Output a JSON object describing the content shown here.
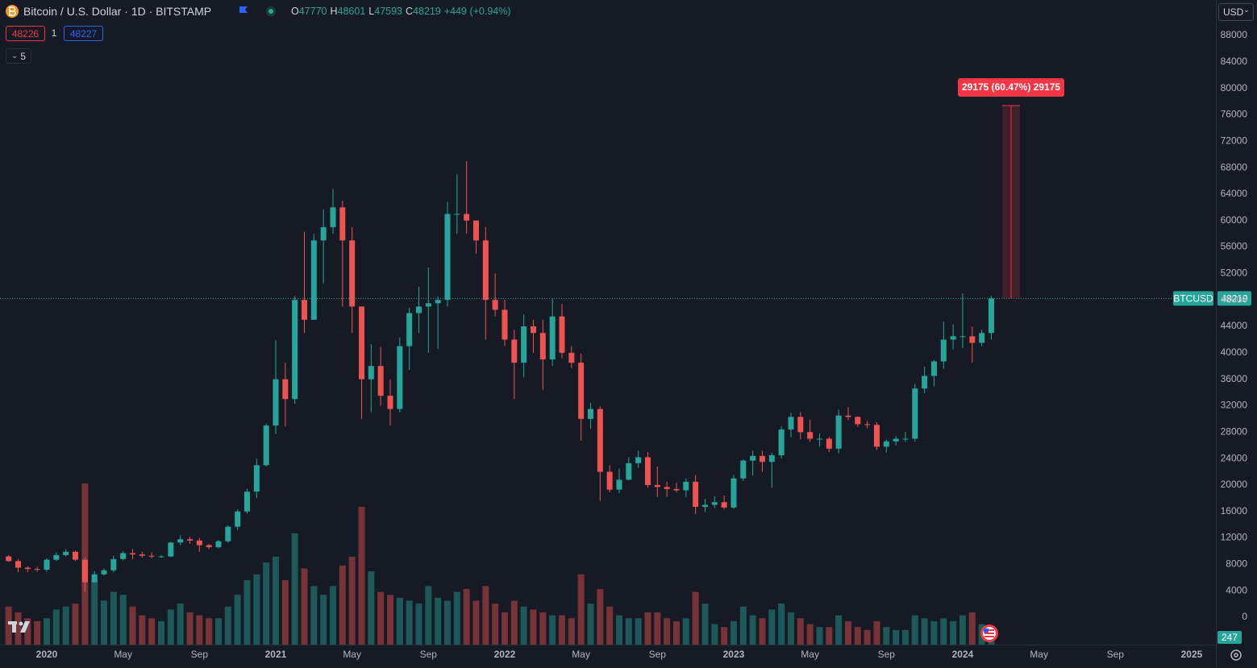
{
  "chart_data": {
    "type": "candlestick",
    "title": "Bitcoin / U.S. Dollar · 1D · BITSTAMP",
    "legend_values": [
      {
        "label": "O",
        "value": 47770
      },
      {
        "label": "H",
        "value": 48601
      },
      {
        "label": "L",
        "value": 47593
      },
      {
        "label": "C",
        "value": 48219
      }
    ],
    "change_label": "+449 (+0.94%)",
    "sell_price": 48226,
    "spread": 1,
    "buy_price": 48227,
    "indicators_count": 5,
    "currency": "USD",
    "symbol": "BTCUSD",
    "up_color": "#26a69a",
    "down_color": "#ef5350",
    "grid": false,
    "categories": [
      null,
      null,
      null,
      null,
      "2020",
      null,
      null,
      null,
      null,
      null,
      null,
      null,
      "May",
      null,
      null,
      null,
      null,
      null,
      null,
      null,
      "Sep",
      null,
      null,
      null,
      null,
      null,
      null,
      null,
      "2021",
      null,
      null,
      null,
      null,
      null,
      null,
      null,
      "May",
      null,
      null,
      null,
      null,
      null,
      null,
      null,
      "Sep",
      null,
      null,
      null,
      null,
      null,
      null,
      null,
      "2022",
      null,
      null,
      null,
      null,
      null,
      null,
      null,
      "May",
      null,
      null,
      null,
      null,
      null,
      null,
      null,
      "Sep",
      null,
      null,
      null,
      null,
      null,
      null,
      null,
      "2023",
      null,
      null,
      null,
      null,
      null,
      null,
      null,
      "May",
      null,
      null,
      null,
      null,
      null,
      null,
      null,
      "Sep",
      null,
      null,
      null,
      null,
      null,
      null,
      null,
      "2024",
      null,
      null,
      null,
      null,
      null,
      null,
      null,
      "May",
      null,
      null,
      null,
      null,
      null,
      null,
      null,
      "Sep",
      null,
      null,
      null,
      null,
      null,
      null,
      null,
      "2025",
      null
    ],
    "open": [
      9200,
      8500,
      7500,
      7300,
      7200,
      8700,
      9400,
      9900,
      8700,
      5300,
      6500,
      7100,
      8800,
      9700,
      9500,
      9300,
      9200,
      9200,
      11300,
      11800,
      11600,
      10900,
      10600,
      11500,
      13700,
      16000,
      19000,
      23000,
      29000,
      36000,
      33000,
      48000,
      45000,
      57000,
      59000,
      62000,
      57000,
      47000,
      36000,
      38000,
      33500,
      31500,
      41000,
      46000,
      47000,
      47500,
      48000,
      61000,
      61000,
      60000,
      57000,
      48000,
      46500,
      42000,
      38500,
      44000,
      43000,
      39000,
      45500,
      40000,
      38500,
      30000,
      31500,
      22000,
      19300,
      20800,
      23300,
      24200,
      20000,
      19700,
      19400,
      19200,
      20500,
      16700,
      17000,
      17400,
      16600,
      21000,
      23700,
      24400,
      23500,
      24500,
      28400,
      30300,
      28000,
      27000,
      27000,
      25500,
      30500,
      30300,
      29200,
      29100,
      25800,
      26600,
      27000,
      27000,
      34600,
      36500,
      38700,
      42000,
      42500,
      42500,
      41500,
      43000,
      null,
      null,
      null,
      null,
      null,
      null,
      null,
      null,
      null,
      null,
      null,
      null,
      null,
      null,
      null,
      null,
      null,
      null,
      null,
      null,
      null,
      null
    ],
    "high": [
      9400,
      8800,
      7700,
      7600,
      8900,
      9800,
      10300,
      10100,
      9000,
      7000,
      7400,
      9300,
      10000,
      10300,
      9900,
      9800,
      9400,
      11400,
      12400,
      12100,
      12000,
      11100,
      11700,
      13900,
      16300,
      19400,
      24000,
      29300,
      41900,
      38500,
      48600,
      58300,
      58000,
      61700,
      64800,
      63000,
      59000,
      47000,
      41300,
      40900,
      36000,
      42300,
      46800,
      50000,
      52900,
      48500,
      62800,
      67000,
      69000,
      60000,
      59000,
      52000,
      48000,
      43500,
      45800,
      45000,
      45000,
      48200,
      47400,
      41000,
      39900,
      32400,
      31900,
      23000,
      22500,
      24200,
      25200,
      25000,
      22800,
      20500,
      20400,
      21000,
      21500,
      17900,
      18300,
      18400,
      21500,
      23900,
      25200,
      25200,
      24900,
      28900,
      30900,
      31000,
      29900,
      27800,
      27300,
      31400,
      31800,
      30400,
      29700,
      29500,
      26900,
      27400,
      28000,
      35300,
      37900,
      38900,
      44700,
      44300,
      49000,
      44000,
      43500,
      48600,
      null,
      null,
      null,
      null,
      null,
      null,
      null,
      null,
      null,
      null,
      null,
      null,
      null,
      null,
      null,
      null,
      null,
      null,
      null,
      null,
      null,
      null
    ],
    "low": [
      8400,
      6800,
      6800,
      6900,
      6900,
      8500,
      9200,
      8500,
      3850,
      5200,
      6300,
      6800,
      8600,
      8800,
      9000,
      8900,
      9000,
      9100,
      10900,
      11100,
      9900,
      10300,
      10400,
      11300,
      13200,
      15700,
      18000,
      22800,
      27700,
      28900,
      32300,
      43000,
      45000,
      50500,
      58000,
      47000,
      43000,
      30000,
      31000,
      32000,
      29000,
      31000,
      37400,
      43000,
      40000,
      40600,
      47000,
      58000,
      58000,
      55000,
      42000,
      45500,
      41000,
      33000,
      36300,
      40000,
      34400,
      38000,
      39200,
      37700,
      26700,
      28500,
      17600,
      18900,
      18800,
      20700,
      22600,
      19600,
      18200,
      18200,
      18900,
      18200,
      15600,
      15900,
      16500,
      16300,
      16400,
      20600,
      21400,
      22000,
      19600,
      24000,
      27200,
      26900,
      26500,
      25800,
      25000,
      24800,
      29800,
      28800,
      28600,
      25300,
      24900,
      26000,
      26500,
      26600,
      33900,
      34900,
      37600,
      40500,
      40700,
      38500,
      41000,
      42000,
      null,
      null,
      null,
      null,
      null,
      null,
      null,
      null,
      null,
      null,
      null,
      null,
      null,
      null,
      null,
      null,
      null,
      null,
      null,
      null,
      null,
      null
    ],
    "close": [
      8500,
      7500,
      7300,
      7200,
      8700,
      9400,
      9900,
      8700,
      5300,
      6500,
      7100,
      8800,
      9700,
      9500,
      9300,
      9200,
      9200,
      11300,
      11800,
      11600,
      10900,
      10600,
      11500,
      13700,
      16000,
      19000,
      23000,
      29000,
      36000,
      33000,
      48000,
      45000,
      57000,
      59000,
      62000,
      57000,
      47000,
      36000,
      38000,
      33500,
      31500,
      41000,
      46000,
      47000,
      47500,
      48000,
      61000,
      61000,
      60000,
      57000,
      48000,
      46500,
      42000,
      38500,
      44000,
      43000,
      39000,
      45500,
      40000,
      38500,
      30000,
      31500,
      22000,
      19300,
      20800,
      23300,
      24200,
      20000,
      19700,
      19400,
      19200,
      20500,
      16700,
      17000,
      17400,
      16600,
      21000,
      23700,
      24400,
      23500,
      24500,
      28400,
      30300,
      28000,
      27000,
      27000,
      25500,
      30500,
      30300,
      29200,
      29100,
      25800,
      26600,
      27000,
      27000,
      34600,
      36500,
      38700,
      42000,
      42500,
      42500,
      41500,
      43000,
      48219,
      null,
      null,
      null,
      null,
      null,
      null,
      null,
      null,
      null,
      null,
      null,
      null,
      null,
      null,
      null,
      null,
      null,
      null,
      null,
      null,
      null,
      null
    ],
    "volume": [
      1300,
      1100,
      900,
      800,
      900,
      1200,
      1300,
      1400,
      5500,
      2200,
      1500,
      1800,
      1700,
      1300,
      1000,
      900,
      800,
      1200,
      1400,
      1100,
      1000,
      900,
      900,
      1300,
      1700,
      2200,
      2400,
      2800,
      3000,
      2200,
      3800,
      2600,
      2000,
      1700,
      2000,
      2700,
      3000,
      4700,
      2500,
      1800,
      1700,
      1600,
      1500,
      1400,
      2000,
      1600,
      1500,
      1800,
      1900,
      1500,
      2000,
      1400,
      1100,
      1500,
      1300,
      1200,
      1100,
      1000,
      1000,
      900,
      2400,
      1400,
      1900,
      1300,
      1000,
      900,
      900,
      1100,
      1100,
      900,
      800,
      900,
      1800,
      1400,
      700,
      600,
      800,
      1300,
      1000,
      900,
      1200,
      1400,
      1100,
      900,
      700,
      600,
      600,
      1000,
      800,
      600,
      500,
      800,
      600,
      500,
      500,
      1000,
      900,
      800,
      900,
      800,
      1000,
      1100,
      700,
      247,
      null,
      null,
      null,
      null,
      null,
      null,
      null,
      null,
      null,
      null,
      null,
      null,
      null,
      null,
      null,
      null,
      null,
      null,
      null,
      null,
      null,
      null
    ],
    "ylim": [
      -4140,
      93360
    ],
    "yticks": [
      0,
      4000,
      8000,
      12000,
      16000,
      20000,
      24000,
      28000,
      32000,
      36000,
      40000,
      44000,
      48000,
      52000,
      56000,
      60000,
      64000,
      68000,
      72000,
      76000,
      80000,
      84000,
      88000
    ],
    "volume_ylim": [
      0,
      22000
    ],
    "measure": {
      "label": "29175 (60.47%) 29175",
      "change": 29175
    }
  }
}
